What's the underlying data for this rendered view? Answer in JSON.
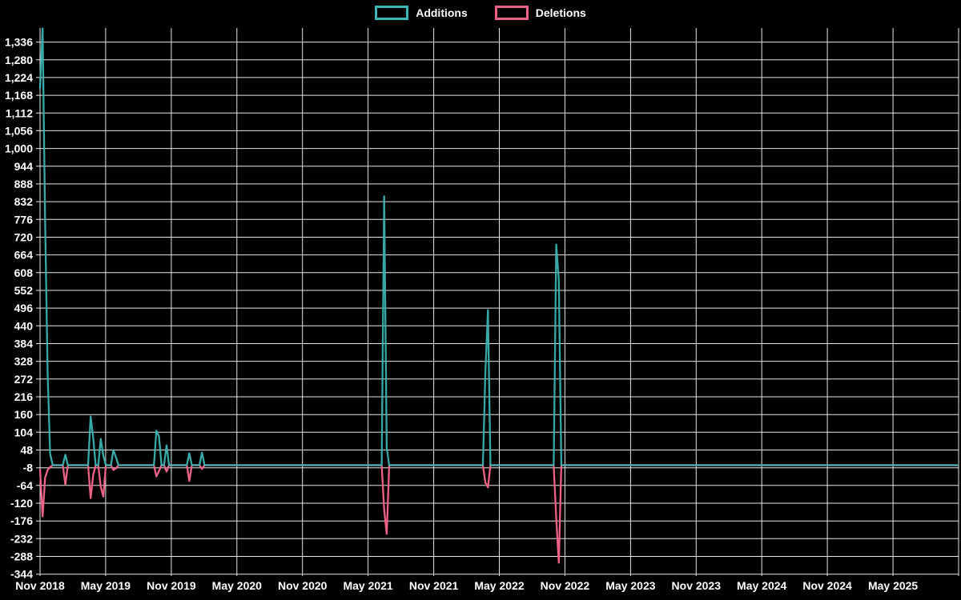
{
  "chart_data": {
    "type": "line",
    "title": "",
    "background_color": "#000000",
    "grid": true,
    "grid_color": "#e8e8e8",
    "text_color": "#ffffff",
    "legend_position": "top-center",
    "legend": [
      {
        "name": "Additions",
        "color": "#3bb7b7"
      },
      {
        "name": "Deletions",
        "color": "#ef6287"
      }
    ],
    "x_axis": {
      "unit": "weeks",
      "start_label": "Nov 2018",
      "end_label": "May 2025",
      "weeks_total": 363,
      "tick_labels": [
        "Nov 2018",
        "May 2019",
        "Nov 2019",
        "May 2020",
        "Nov 2020",
        "May 2021",
        "Nov 2021",
        "May 2022",
        "Nov 2022",
        "May 2023",
        "Nov 2023",
        "May 2024",
        "Nov 2024",
        "May 2025"
      ]
    },
    "y_axis": {
      "min": -344,
      "max": 1336,
      "step": 56,
      "tick_labels": [
        "1,336",
        "1,280",
        "1,224",
        "1,168",
        "1,112",
        "1,056",
        "1,000",
        "944",
        "888",
        "832",
        "776",
        "720",
        "664",
        "608",
        "552",
        "496",
        "440",
        "384",
        "328",
        "272",
        "216",
        "160",
        "104",
        "48",
        "-8",
        "-64",
        "-120",
        "-176",
        "-232",
        "-288",
        "-344"
      ],
      "tick_values": [
        1336,
        1280,
        1224,
        1168,
        1112,
        1056,
        1000,
        944,
        888,
        832,
        776,
        720,
        664,
        608,
        552,
        496,
        440,
        384,
        328,
        272,
        216,
        160,
        104,
        48,
        -8,
        -64,
        -120,
        -176,
        -232,
        -288,
        -344
      ]
    },
    "series": [
      {
        "name": "Additions",
        "color": "#3bb7b7",
        "baseline_value": 0,
        "sparse_points_week_value": [
          [
            0,
            1190
          ],
          [
            1,
            1379
          ],
          [
            2,
            778
          ],
          [
            3,
            288
          ],
          [
            4,
            36
          ],
          [
            10,
            33
          ],
          [
            20,
            154
          ],
          [
            21,
            86
          ],
          [
            24,
            83
          ],
          [
            25,
            30
          ],
          [
            29,
            48
          ],
          [
            30,
            25
          ],
          [
            46,
            109
          ],
          [
            47,
            91
          ],
          [
            50,
            63
          ],
          [
            59,
            38
          ],
          [
            64,
            40
          ],
          [
            136,
            849
          ],
          [
            137,
            55
          ],
          [
            176,
            293
          ],
          [
            177,
            490
          ],
          [
            204,
            697
          ],
          [
            205,
            583
          ]
        ]
      },
      {
        "name": "Deletions",
        "color": "#ef6287",
        "baseline_value": 0,
        "sparse_points_week_value": [
          [
            0,
            -12
          ],
          [
            1,
            -162
          ],
          [
            2,
            -40
          ],
          [
            3,
            -15
          ],
          [
            4,
            -6
          ],
          [
            10,
            -61
          ],
          [
            20,
            -104
          ],
          [
            21,
            -30
          ],
          [
            24,
            -68
          ],
          [
            25,
            -99
          ],
          [
            29,
            -15
          ],
          [
            30,
            -10
          ],
          [
            46,
            -35
          ],
          [
            47,
            -18
          ],
          [
            50,
            -20
          ],
          [
            59,
            -50
          ],
          [
            64,
            -12
          ],
          [
            136,
            -140
          ],
          [
            137,
            -217
          ],
          [
            176,
            -55
          ],
          [
            177,
            -70
          ],
          [
            204,
            -169
          ],
          [
            205,
            -308
          ]
        ]
      }
    ]
  }
}
